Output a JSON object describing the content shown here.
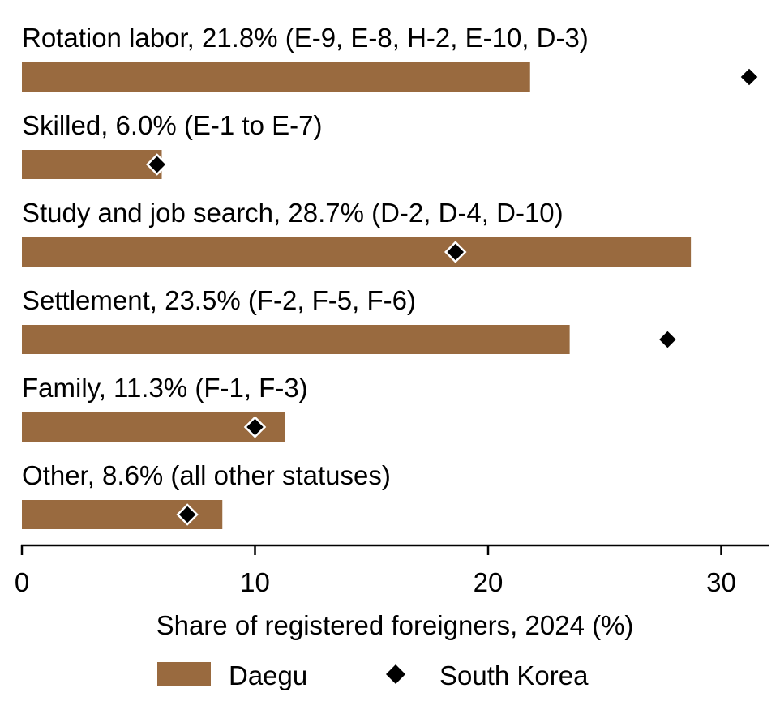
{
  "chart_data": {
    "type": "bar",
    "orientation": "horizontal",
    "categories": [
      "Rotation labor, 21.8% (E-9, E-8, H-2, E-10, D-3)",
      "Skilled, 6.0% (E-1 to E-7)",
      "Study and job search, 28.7% (D-2, D-4, D-10)",
      "Settlement, 23.5% (F-2, F-5, F-6)",
      "Family, 11.3% (F-1, F-3)",
      "Other, 8.6% (all other statuses)"
    ],
    "series": [
      {
        "name": "Daegu",
        "mark": "bar",
        "color": "#996a3f",
        "values": [
          21.8,
          6.0,
          28.7,
          23.5,
          11.3,
          8.6
        ]
      },
      {
        "name": "South Korea",
        "mark": "diamond",
        "color": "#000000",
        "values": [
          31.2,
          5.8,
          18.6,
          27.7,
          10.0,
          7.1
        ]
      }
    ],
    "xlabel": "Share of registered foreigners, 2024 (%)",
    "ylabel": "",
    "xlim": [
      0,
      32
    ],
    "xticks": [
      0,
      10,
      20,
      30
    ],
    "grid": false,
    "legend_position": "bottom-center"
  }
}
